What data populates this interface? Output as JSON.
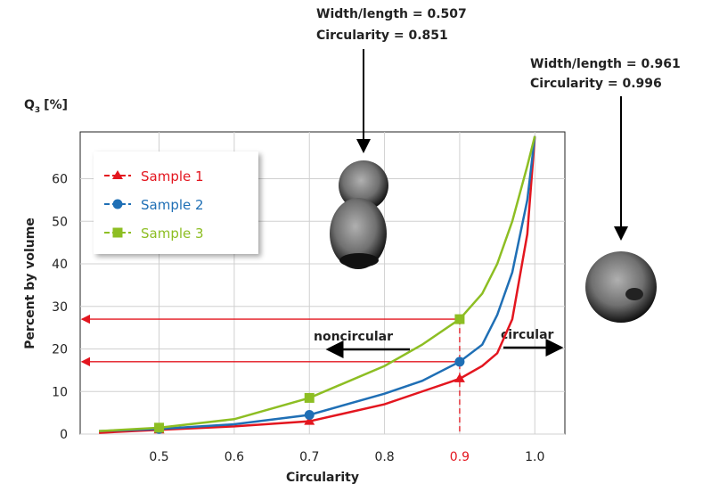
{
  "chart_data": {
    "type": "line",
    "x_label": "Circularity",
    "y_label": "Percent by volume",
    "q_label": {
      "base": "Q",
      "sub": "3",
      "unit": "[%]"
    },
    "xlim": [
      0.395,
      1.04
    ],
    "ylim": [
      0,
      71
    ],
    "xticks": [
      0.5,
      0.6,
      0.7,
      0.8,
      0.9,
      {
        "value": 1.0,
        "label": "1.0"
      }
    ],
    "yticks": [
      0,
      10,
      20,
      30,
      40,
      50,
      60
    ],
    "grid": true,
    "legend": "upper left",
    "markers_at": [
      0.5,
      0.7,
      0.9
    ],
    "series": [
      {
        "name": "Sample 1",
        "color": "#e3161f",
        "marker": "triangle",
        "x": [
          0.42,
          0.5,
          0.6,
          0.7,
          0.8,
          0.85,
          0.9,
          0.93,
          0.95,
          0.97,
          0.99,
          1.0
        ],
        "values": [
          0.3,
          1,
          1.8,
          3,
          7,
          10,
          13,
          16,
          19,
          27,
          47,
          70
        ]
      },
      {
        "name": "Sample 2",
        "color": "#1f6fb5",
        "marker": "circle",
        "x": [
          0.42,
          0.5,
          0.6,
          0.7,
          0.8,
          0.85,
          0.9,
          0.93,
          0.95,
          0.97,
          0.99,
          1.0
        ],
        "values": [
          0.7,
          1.2,
          2.3,
          4.5,
          9.5,
          12.5,
          17,
          21,
          28,
          38,
          55,
          70
        ]
      },
      {
        "name": "Sample 3",
        "color": "#8dbe23",
        "marker": "square",
        "x": [
          0.42,
          0.5,
          0.6,
          0.7,
          0.8,
          0.85,
          0.9,
          0.93,
          0.95,
          0.97,
          0.99,
          1.0
        ],
        "values": [
          0.7,
          1.5,
          3.5,
          8.5,
          16,
          21,
          27,
          33,
          40,
          50,
          63,
          70
        ]
      }
    ],
    "reference_lines": {
      "x": 0.9,
      "y": [
        27,
        17
      ],
      "color": "#e3161f"
    },
    "annotations": {
      "noncircular": "noncircular",
      "circular": "circular",
      "particle_1": [
        "Width/length = 0.507",
        "Circularity = 0.851"
      ],
      "particle_2": [
        "Width/length = 0.961",
        "Circularity = 0.996"
      ]
    }
  }
}
